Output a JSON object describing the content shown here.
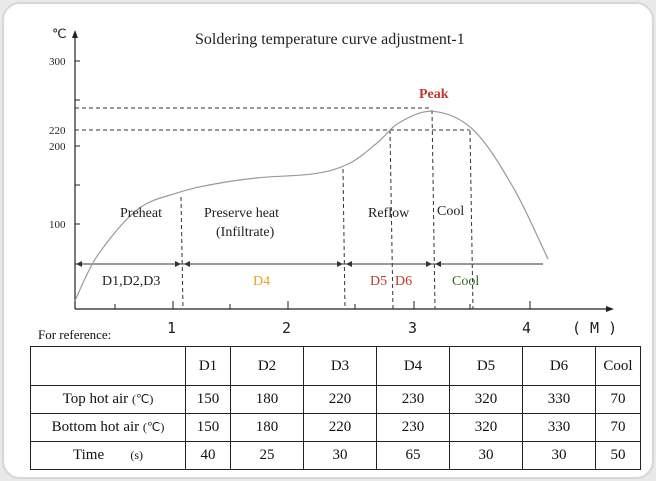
{
  "chart_data": {
    "type": "line",
    "title": "Soldering temperature curve adjustment-1",
    "ylabel": "℃",
    "xlabel": "( M )",
    "y_ticks": [
      "300",
      "220",
      "200",
      "100"
    ],
    "x_ticks": [
      "1",
      "2",
      "3",
      "4"
    ],
    "xlim": [
      0,
      4.3
    ],
    "ylim": [
      0,
      310
    ],
    "grid": false,
    "series": [
      {
        "x": [
          0,
          0.2,
          0.55,
          0.9,
          1.2,
          1.6,
          2.1,
          2.4,
          2.65,
          2.85,
          3.15,
          3.5,
          3.85,
          4.15
        ],
        "y": [
          10,
          65,
          120,
          140,
          150,
          158,
          163,
          175,
          200,
          225,
          238,
          215,
          145,
          60
        ]
      }
    ],
    "phases": [
      "Preheat",
      "Preserve heat",
      "(Infiltrate)",
      "Reflow",
      "Cool"
    ],
    "peak_label": "Peak",
    "zones": [
      {
        "label": "D1,D2,D3",
        "color": "#222222"
      },
      {
        "label": "D4",
        "color": "#e8a21c"
      },
      {
        "label": "D5",
        "color": "#c0392b"
      },
      {
        "label": "D6",
        "color": "#c0392b"
      },
      {
        "label": "Cool",
        "color": "#2e6b1f"
      }
    ],
    "peak_color": "#c0392b"
  },
  "reference": {
    "label": "For reference:",
    "headers": [
      "",
      "D1",
      "D2",
      "D3",
      "D4",
      "D5",
      "D6",
      "Cool"
    ],
    "rows": [
      {
        "label": "Top hot air",
        "unit": "(℃)",
        "values": [
          "150",
          "180",
          "220",
          "230",
          "320",
          "330",
          "70"
        ]
      },
      {
        "label": "Bottom hot air",
        "unit": "(℃)",
        "values": [
          "150",
          "180",
          "220",
          "230",
          "320",
          "330",
          "70"
        ]
      },
      {
        "label": "Time",
        "unit": "(s)",
        "values": [
          "40",
          "25",
          "30",
          "65",
          "30",
          "30",
          "50"
        ]
      }
    ]
  }
}
